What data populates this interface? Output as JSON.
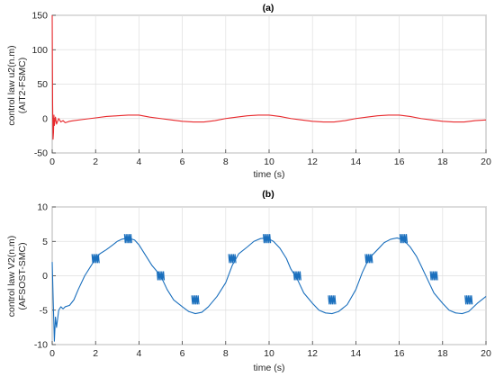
{
  "chart_data": [
    {
      "type": "line",
      "title": "(a)",
      "xlabel": "time (s)",
      "ylabel": [
        "control law u2(n.m)",
        "(AIT2-FSMC)"
      ],
      "xlim": [
        0,
        20
      ],
      "ylim": [
        -50,
        150
      ],
      "xticks": [
        "0",
        "2",
        "4",
        "6",
        "8",
        "10",
        "12",
        "14",
        "16",
        "18",
        "20"
      ],
      "yticks": [
        "-50",
        "0",
        "50",
        "100",
        "150"
      ],
      "grid": true,
      "series": [
        {
          "color": "#e8282c",
          "x": [
            0,
            0.02,
            0.04,
            0.06,
            0.08,
            0.1,
            0.15,
            0.2,
            0.3,
            0.4,
            0.5,
            0.6,
            0.8,
            1.0,
            1.5,
            2.0,
            2.5,
            3.0,
            3.5,
            4.0,
            4.5,
            5.0,
            5.5,
            6.0,
            6.5,
            7.0,
            7.5,
            8.0,
            8.5,
            9.0,
            9.5,
            10.0,
            10.5,
            11.0,
            11.5,
            12.0,
            12.5,
            13.0,
            13.5,
            14.0,
            14.5,
            15.0,
            15.5,
            16.0,
            16.5,
            17.0,
            17.5,
            18.0,
            18.5,
            19.0,
            19.5,
            20.0
          ],
          "y": [
            150,
            20,
            -30,
            -20,
            5,
            -10,
            2,
            -8,
            0,
            -5,
            -3,
            -6,
            -4,
            -3,
            -1,
            1,
            3,
            4,
            5,
            5,
            2,
            0,
            -2,
            -4,
            -5,
            -5,
            -3,
            0,
            2,
            4,
            5,
            5,
            3,
            0,
            -2,
            -4,
            -5,
            -5,
            -3,
            0,
            2,
            4,
            5,
            5,
            3,
            0,
            -2,
            -4,
            -5,
            -5,
            -3,
            -2
          ]
        }
      ]
    },
    {
      "type": "line",
      "title": "(b)",
      "xlabel": "time (s)",
      "ylabel": [
        "control law V2(n.m)",
        "(AFSOST-SMC)"
      ],
      "xlim": [
        0,
        20
      ],
      "ylim": [
        -10,
        10
      ],
      "xticks": [
        "0",
        "2",
        "4",
        "6",
        "8",
        "10",
        "12",
        "14",
        "16",
        "18",
        "20"
      ],
      "yticks": [
        "-10",
        "-5",
        "0",
        "5",
        "10"
      ],
      "grid": true,
      "series": [
        {
          "color": "#1a6fbd",
          "x": [
            0,
            0.05,
            0.1,
            0.15,
            0.2,
            0.3,
            0.4,
            0.5,
            0.6,
            0.8,
            1.0,
            1.2,
            1.5,
            1.8,
            2.0,
            2.2,
            2.5,
            2.8,
            3.0,
            3.2,
            3.5,
            3.8,
            4.0,
            4.3,
            4.6,
            5.0,
            5.3,
            5.6,
            6.0,
            6.3,
            6.6,
            6.9,
            7.2,
            7.6,
            8.0,
            8.3,
            8.6,
            9.0,
            9.3,
            9.6,
            9.9,
            10.2,
            10.5,
            10.8,
            11.0,
            11.3,
            11.6,
            12.0,
            12.3,
            12.6,
            12.9,
            13.2,
            13.6,
            14.0,
            14.3,
            14.6,
            15.0,
            15.3,
            15.6,
            15.9,
            16.2,
            16.5,
            16.8,
            17.0,
            17.3,
            17.6,
            18.0,
            18.3,
            18.6,
            18.9,
            19.2,
            19.6,
            20.0
          ],
          "y": [
            2,
            -4,
            -9.5,
            -6,
            -7.5,
            -5,
            -4.5,
            -4.8,
            -4.5,
            -4.3,
            -3.5,
            -2,
            0,
            1.5,
            2.5,
            3.2,
            3.8,
            4.5,
            5,
            5.3,
            5.5,
            5.2,
            4.5,
            3,
            1.5,
            0,
            -2,
            -3.5,
            -4.5,
            -5.2,
            -5.5,
            -5.3,
            -4.5,
            -3,
            -1,
            1.5,
            3.2,
            4.2,
            5,
            5.4,
            5.5,
            5,
            4,
            2.5,
            1,
            -0.5,
            -2.5,
            -4,
            -5,
            -5.4,
            -5.5,
            -5.2,
            -4.2,
            -2,
            0.5,
            2.5,
            3.8,
            4.8,
            5.3,
            5.5,
            5.2,
            4.2,
            2.8,
            1.5,
            -0.5,
            -2.5,
            -4,
            -5,
            -5.4,
            -5.5,
            -5.2,
            -4,
            -3
          ]
        }
      ],
      "oscillation_bursts": [
        {
          "x": 2.0,
          "y": 2.5
        },
        {
          "x": 3.5,
          "y": 5.4
        },
        {
          "x": 5.0,
          "y": 0.0
        },
        {
          "x": 6.6,
          "y": -3.5
        },
        {
          "x": 8.3,
          "y": 2.5
        },
        {
          "x": 9.9,
          "y": 5.4
        },
        {
          "x": 11.3,
          "y": 0.0
        },
        {
          "x": 12.9,
          "y": -3.5
        },
        {
          "x": 14.6,
          "y": 2.5
        },
        {
          "x": 16.2,
          "y": 5.4
        },
        {
          "x": 17.6,
          "y": 0.0
        },
        {
          "x": 19.2,
          "y": -3.5
        }
      ]
    }
  ]
}
